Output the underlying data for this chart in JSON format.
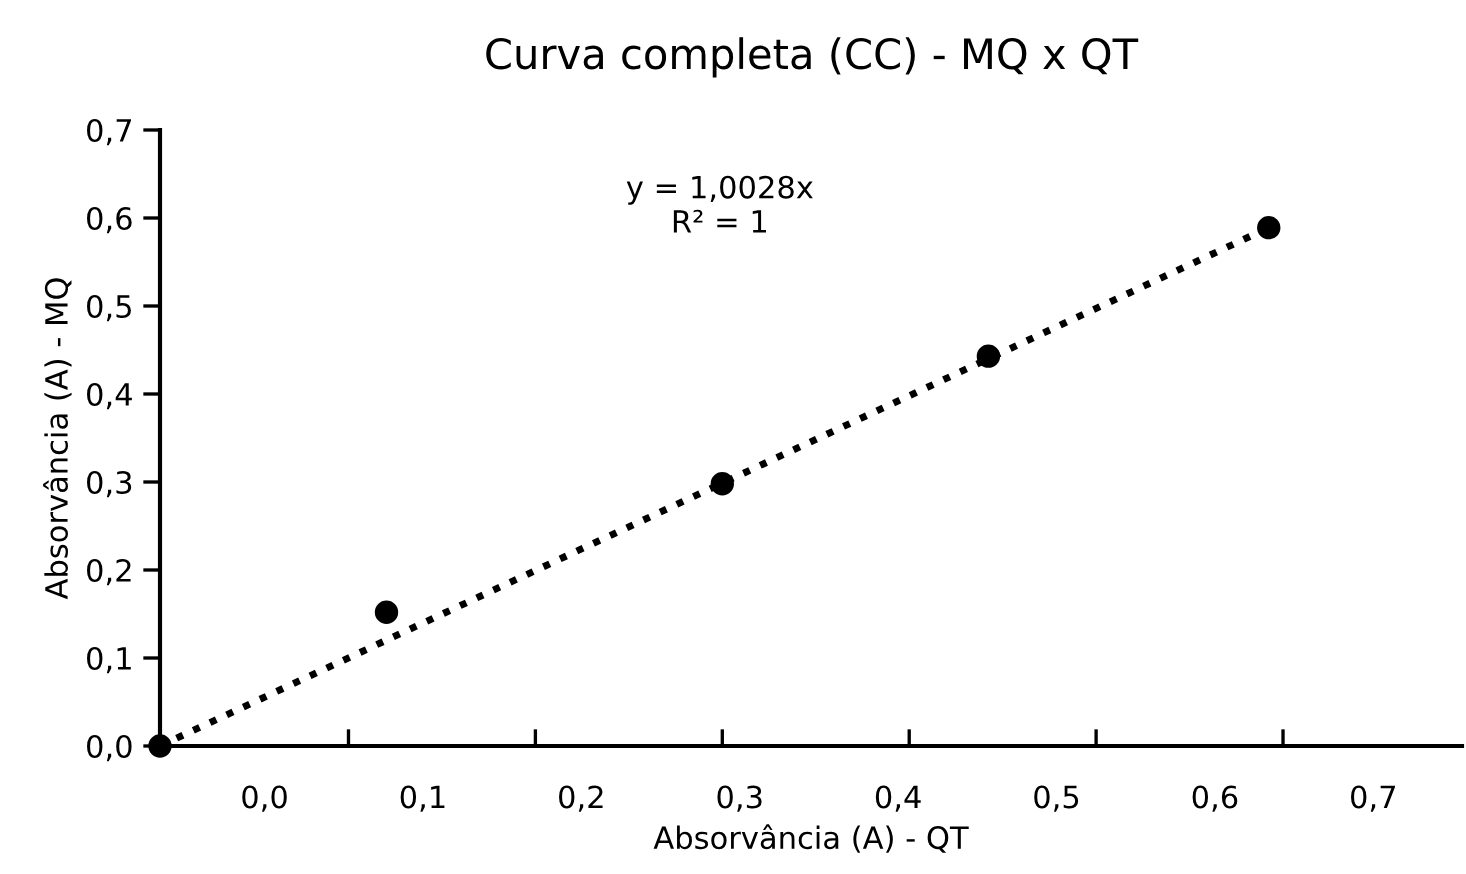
{
  "chart_data": {
    "type": "scatter",
    "title": "Curva completa (CC) - MQ x QT",
    "xlabel": "Absorvância (A) - QT",
    "ylabel": "Absorvância (A) - MQ",
    "series": [
      {
        "color": "#000000",
        "marker": "circle",
        "x": [
          -0.066,
          0.077,
          0.289,
          0.457,
          0.634
        ],
        "values": [
          0.0,
          0.152,
          0.298,
          0.443,
          0.589
        ]
      },
      {
        "type": "line",
        "color": "#000000",
        "line_style": "dotted",
        "x": [
          -0.066,
          0.634
        ],
        "values": [
          0.0,
          0.589
        ]
      }
    ],
    "annotations": [
      "y = 1,0028x\nR² = 1"
    ],
    "xlim": [
      -0.066,
      0.756
    ],
    "ylim": [
      0,
      0.7
    ],
    "xticks": [
      {
        "value": 0.0,
        "label": "0,0"
      },
      {
        "value": 0.1,
        "label": "0,1"
      },
      {
        "value": 0.2,
        "label": "0,2"
      },
      {
        "value": 0.3,
        "label": "0,3"
      },
      {
        "value": 0.4,
        "label": "0,4"
      },
      {
        "value": 0.5,
        "label": "0,5"
      },
      {
        "value": 0.6,
        "label": "0,6"
      },
      {
        "value": 0.7,
        "label": "0,7"
      },
      {
        "value": 0.053,
        "label": null
      },
      {
        "value": 0.171,
        "label": null
      },
      {
        "value": 0.289,
        "label": null
      },
      {
        "value": 0.407,
        "label": null
      },
      {
        "value": 0.525,
        "label": null
      },
      {
        "value": 0.643,
        "label": null
      }
    ],
    "yticks": [
      {
        "value": 0.0,
        "label": "0,0"
      },
      {
        "value": 0.1,
        "label": "0,1"
      },
      {
        "value": 0.2,
        "label": "0,2"
      },
      {
        "value": 0.3,
        "label": "0,3"
      },
      {
        "value": 0.4,
        "label": "0,4"
      },
      {
        "value": 0.5,
        "label": "0,5"
      },
      {
        "value": 0.6,
        "label": "0,6"
      },
      {
        "value": 0.7,
        "label": "0,7"
      }
    ],
    "grid": false,
    "legend": false
  }
}
